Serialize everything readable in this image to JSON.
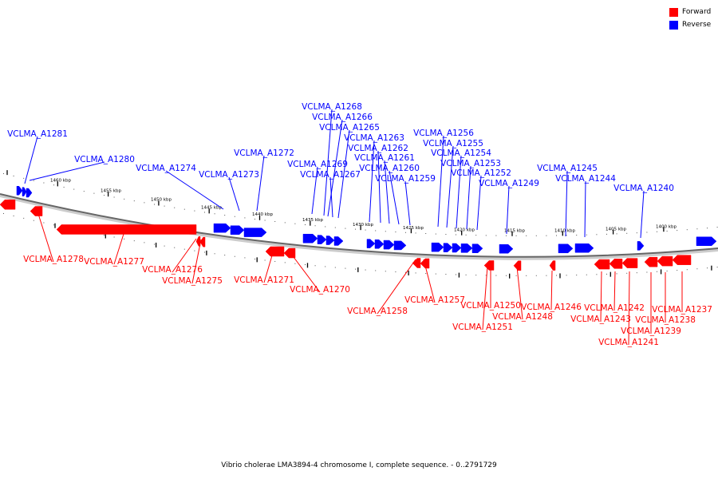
{
  "legend": {
    "forward_label": "Forward",
    "reverse_label": "Reverse",
    "forward_color": "#ff0000",
    "reverse_color": "#0000ff"
  },
  "caption": "Vibrio cholerae LMA3894-4 chromosome I, complete sequence. - 0..2791729",
  "scale": {
    "outer_ticks": [
      "1460 kbp",
      "1455 kbp",
      "1450 kbp",
      "1445 kbp",
      "1440 kbp",
      "1435 kbp",
      "1430 kbp",
      "1425 kbp",
      "1420 kbp",
      "1415 kbp",
      "1410 kbp",
      "1405 kbp",
      "1400 kbp"
    ]
  },
  "reverse_genes": [
    "VCLMA_A1281",
    "VCLMA_A1280",
    "VCLMA_A1274",
    "VCLMA_A1273",
    "VCLMA_A1272",
    "VCLMA_A1269",
    "VCLMA_A1268",
    "VCLMA_A1267",
    "VCLMA_A1266",
    "VCLMA_A1265",
    "VCLMA_A1263",
    "VCLMA_A1262",
    "VCLMA_A1261",
    "VCLMA_A1260",
    "VCLMA_A1259",
    "VCLMA_A1256",
    "VCLMA_A1255",
    "VCLMA_A1254",
    "VCLMA_A1253",
    "VCLMA_A1252",
    "VCLMA_A1249",
    "VCLMA_A1245",
    "VCLMA_A1244",
    "VCLMA_A1240"
  ],
  "forward_genes": [
    "VCLMA_A1278",
    "VCLMA_A1277",
    "VCLMA_A1276",
    "VCLMA_A1275",
    "VCLMA_A1271",
    "VCLMA_A1270",
    "VCLMA_A1258",
    "VCLMA_A1257",
    "VCLMA_A1251",
    "VCLMA_A1250",
    "VCLMA_A1248",
    "VCLMA_A1246",
    "VCLMA_A1243",
    "VCLMA_A1242",
    "VCLMA_A1241",
    "VCLMA_A1239",
    "VCLMA_A1238",
    "VCLMA_A1237"
  ]
}
